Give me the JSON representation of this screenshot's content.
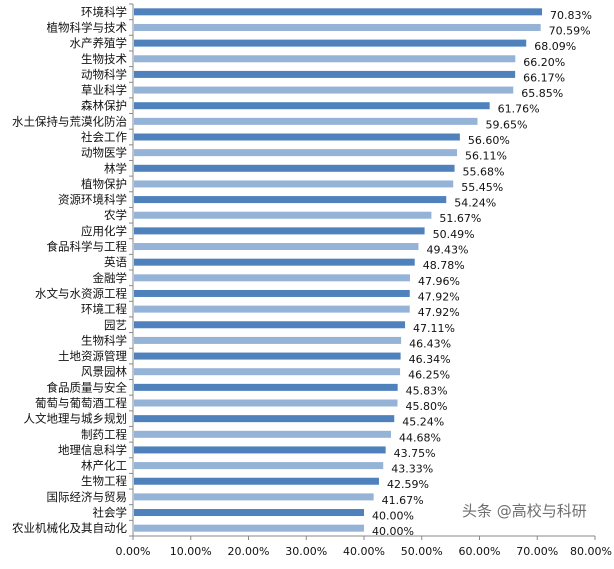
{
  "chart_data": {
    "type": "bar",
    "orientation": "horizontal",
    "categories": [
      "环境科学",
      "植物科学与技术",
      "水产养殖学",
      "生物技术",
      "动物科学",
      "草业科学",
      "森林保护",
      "水土保持与荒漠化防治",
      "社会工作",
      "动物医学",
      "林学",
      "植物保护",
      "资源环境科学",
      "农学",
      "应用化学",
      "食品科学与工程",
      "英语",
      "金融学",
      "水文与水资源工程",
      "环境工程",
      "园艺",
      "生物科学",
      "土地资源管理",
      "风景园林",
      "食品质量与安全",
      "葡萄与葡萄酒工程",
      "人文地理与城乡规划",
      "制药工程",
      "地理信息科学",
      "林产化工",
      "生物工程",
      "国际经济与贸易",
      "社会学",
      "农业机械化及其自动化"
    ],
    "values": [
      70.83,
      70.59,
      68.09,
      66.2,
      66.17,
      65.85,
      61.76,
      59.65,
      56.6,
      56.11,
      55.68,
      55.45,
      54.24,
      51.67,
      50.49,
      49.43,
      48.78,
      47.96,
      47.92,
      47.92,
      47.11,
      46.43,
      46.34,
      46.25,
      45.83,
      45.8,
      45.24,
      44.68,
      43.75,
      43.33,
      42.59,
      41.67,
      40.0,
      40.0
    ],
    "value_labels": [
      "70.83%",
      "70.59%",
      "68.09%",
      "66.20%",
      "66.17%",
      "65.85%",
      "61.76%",
      "59.65%",
      "56.60%",
      "56.11%",
      "55.68%",
      "55.45%",
      "54.24%",
      "51.67%",
      "50.49%",
      "49.43%",
      "48.78%",
      "47.96%",
      "47.92%",
      "47.92%",
      "47.11%",
      "46.43%",
      "46.34%",
      "46.25%",
      "45.83%",
      "45.80%",
      "45.24%",
      "44.68%",
      "43.75%",
      "43.33%",
      "42.59%",
      "41.67%",
      "40.00%",
      "40.00%"
    ],
    "xlim": [
      0,
      80
    ],
    "x_tick_labels": [
      "0.00%",
      "10.00%",
      "20.00%",
      "30.00%",
      "40.00%",
      "50.00%",
      "60.00%",
      "70.00%",
      "80.00%"
    ],
    "grid": false,
    "legend": "none",
    "colors": {
      "odd": "#4f81bd",
      "even": "#95b3d7"
    }
  },
  "watermark": "头条 @高校与科研"
}
